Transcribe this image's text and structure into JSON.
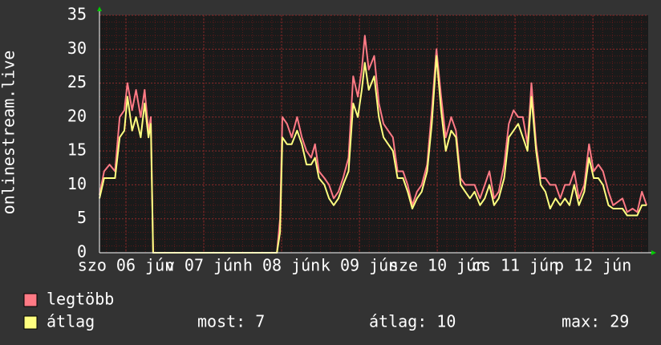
{
  "chart_data": {
    "type": "line",
    "y_label": "onlinestream.live",
    "x": [
      -0.34,
      -0.28,
      -0.21,
      -0.14,
      -0.08,
      -0.02,
      0.02,
      0.08,
      0.13,
      0.19,
      0.24,
      0.29,
      0.32,
      0.35,
      1.94,
      1.98,
      2.01,
      2.07,
      2.13,
      2.2,
      2.26,
      2.32,
      2.38,
      2.43,
      2.48,
      2.55,
      2.61,
      2.67,
      2.73,
      2.79,
      2.86,
      2.92,
      2.98,
      3.03,
      3.07,
      3.12,
      3.19,
      3.25,
      3.31,
      3.37,
      3.43,
      3.49,
      3.56,
      3.62,
      3.68,
      3.74,
      3.8,
      3.87,
      3.93,
      3.99,
      4.05,
      4.11,
      4.18,
      4.24,
      4.3,
      4.36,
      4.42,
      4.48,
      4.55,
      4.61,
      4.67,
      4.73,
      4.79,
      4.86,
      4.92,
      4.98,
      5.04,
      5.1,
      5.16,
      5.21,
      5.27,
      5.33,
      5.39,
      5.45,
      5.52,
      5.58,
      5.64,
      5.7,
      5.76,
      5.82,
      5.89,
      5.95,
      6.01,
      6.07,
      6.13,
      6.2,
      6.26,
      6.32,
      6.38,
      6.44,
      6.51,
      6.57,
      6.63,
      6.69
    ],
    "series": [
      {
        "name": "legtöbb",
        "color": "#ff7a85",
        "values": [
          8.5,
          12,
          13,
          12,
          20,
          21,
          25,
          21,
          24,
          20,
          24,
          18,
          20,
          0,
          0,
          5,
          20,
          19,
          17,
          20,
          17,
          15,
          14,
          16,
          12,
          11,
          10,
          8,
          9,
          11,
          14,
          26,
          23,
          27,
          32,
          27,
          29,
          22,
          19,
          18,
          17,
          12,
          12,
          10,
          7,
          9,
          10,
          13,
          21,
          30,
          23,
          17,
          20,
          18,
          11,
          10,
          10,
          10,
          8,
          10,
          12,
          8,
          9,
          13,
          19,
          21,
          20,
          20,
          16,
          25,
          16,
          11,
          11,
          10,
          10,
          8,
          10,
          10,
          12,
          8,
          10,
          16,
          12,
          13,
          12,
          9,
          7,
          7.5,
          8,
          6,
          6.5,
          6,
          9,
          7
        ]
      },
      {
        "name": "átlag",
        "color": "#ffff80",
        "values": [
          8,
          11,
          11,
          11,
          17,
          18,
          23,
          18,
          20,
          17,
          22,
          17,
          19,
          0,
          0,
          3,
          17,
          16,
          16,
          18,
          16,
          13,
          13,
          14,
          11,
          10,
          8,
          7,
          8,
          10,
          12,
          22,
          20,
          24,
          28,
          24,
          26,
          20,
          17,
          16,
          15,
          11,
          11,
          9,
          6.5,
          8,
          9,
          12,
          19,
          29,
          21,
          15,
          18,
          17,
          10,
          9,
          8,
          9,
          7,
          8,
          10,
          7,
          8,
          11,
          17,
          18,
          19,
          17,
          15,
          23,
          15,
          10,
          9,
          6.5,
          8,
          7,
          8,
          7,
          10,
          7,
          9,
          14,
          11,
          11,
          10,
          7,
          6.5,
          6.5,
          6.5,
          5.5,
          5.5,
          5.5,
          7,
          7
        ]
      }
    ],
    "xlim": [
      -0.34,
      6.71
    ],
    "xticks": [
      {
        "value": 0,
        "label": "szo 06 jún"
      },
      {
        "value": 1,
        "label": "v 07 jún"
      },
      {
        "value": 2,
        "label": "h 08 jún"
      },
      {
        "value": 3,
        "label": "k 09 jún"
      },
      {
        "value": 4,
        "label": "sze 10 jún"
      },
      {
        "value": 5,
        "label": "cs 11 jún"
      },
      {
        "value": 6,
        "label": "p 12 jún"
      }
    ],
    "ylim": [
      0,
      35
    ],
    "yticks": [
      0,
      5,
      10,
      15,
      20,
      25,
      30,
      35
    ],
    "grid": true,
    "minor_grid": true,
    "stats": [
      "most: 7",
      "átlag: 10",
      "max: 29"
    ]
  }
}
